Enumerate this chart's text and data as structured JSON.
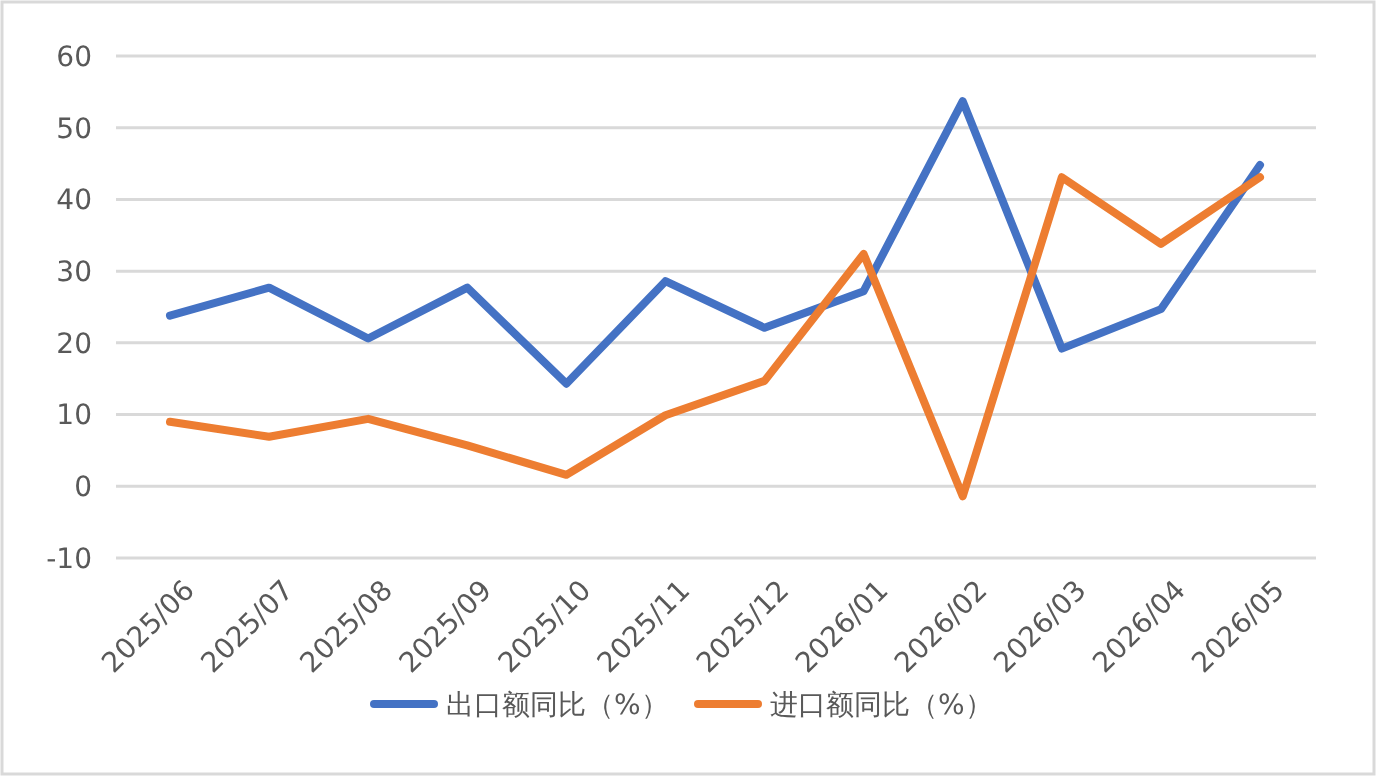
{
  "chart_data": {
    "type": "line",
    "categories": [
      "2025/06",
      "2025/07",
      "2025/08",
      "2025/09",
      "2025/10",
      "2025/11",
      "2025/12",
      "2026/01",
      "2026/02",
      "2026/03",
      "2026/04",
      "2026/05"
    ],
    "series": [
      {
        "name": "出口额同比（%）",
        "color": "#4472c4",
        "values": [
          23.8,
          27.7,
          20.6,
          27.7,
          14.3,
          28.6,
          22.1,
          27.2,
          53.7,
          19.2,
          24.7,
          44.8
        ]
      },
      {
        "name": "进口额同比（%）",
        "color": "#ed7d31",
        "values": [
          9.0,
          6.9,
          9.4,
          5.7,
          1.6,
          9.9,
          14.7,
          32.4,
          -1.4,
          43.1,
          33.8,
          43.1
        ]
      }
    ],
    "ylim": [
      -10,
      60
    ],
    "yticks": [
      -10,
      0,
      10,
      20,
      30,
      40,
      50,
      60
    ],
    "grid": "y",
    "legend": "bottom",
    "marker": "none",
    "line_style": "solid"
  }
}
